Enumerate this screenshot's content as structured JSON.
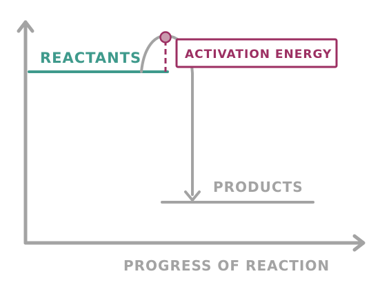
{
  "labels": {
    "reactants": "REACTANTS",
    "activation_energy": "ACTIVATION ENERGY",
    "products": "PRODUCTS",
    "x_axis": "PROGRESS OF REACTION"
  },
  "colors": {
    "axis": "#a3a3a3",
    "reactants": "#3f9a8c",
    "activation": "#9c2f62",
    "activation_fill": "#c99aae",
    "products": "#a3a3a3"
  }
}
